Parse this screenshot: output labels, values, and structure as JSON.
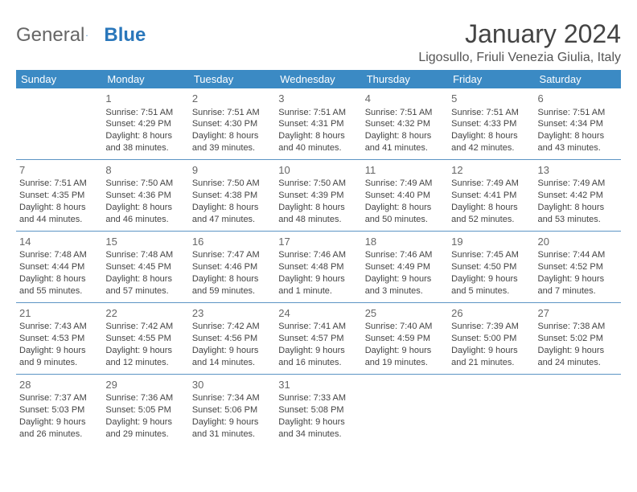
{
  "logo": {
    "part1": "General",
    "part2": "Blue"
  },
  "title": "January 2024",
  "location": "Ligosullo, Friuli Venezia Giulia, Italy",
  "colors": {
    "header_bg": "#3b8ac4",
    "header_text": "#ffffff",
    "cell_border": "#5c94c4",
    "body_text": "#444444",
    "daynum_text": "#666666",
    "logo_gray": "#666666",
    "logo_blue": "#2a77bb"
  },
  "weekdays": [
    "Sunday",
    "Monday",
    "Tuesday",
    "Wednesday",
    "Thursday",
    "Friday",
    "Saturday"
  ],
  "weeks": [
    [
      null,
      {
        "n": "1",
        "l1": "Sunrise: 7:51 AM",
        "l2": "Sunset: 4:29 PM",
        "l3": "Daylight: 8 hours",
        "l4": "and 38 minutes."
      },
      {
        "n": "2",
        "l1": "Sunrise: 7:51 AM",
        "l2": "Sunset: 4:30 PM",
        "l3": "Daylight: 8 hours",
        "l4": "and 39 minutes."
      },
      {
        "n": "3",
        "l1": "Sunrise: 7:51 AM",
        "l2": "Sunset: 4:31 PM",
        "l3": "Daylight: 8 hours",
        "l4": "and 40 minutes."
      },
      {
        "n": "4",
        "l1": "Sunrise: 7:51 AM",
        "l2": "Sunset: 4:32 PM",
        "l3": "Daylight: 8 hours",
        "l4": "and 41 minutes."
      },
      {
        "n": "5",
        "l1": "Sunrise: 7:51 AM",
        "l2": "Sunset: 4:33 PM",
        "l3": "Daylight: 8 hours",
        "l4": "and 42 minutes."
      },
      {
        "n": "6",
        "l1": "Sunrise: 7:51 AM",
        "l2": "Sunset: 4:34 PM",
        "l3": "Daylight: 8 hours",
        "l4": "and 43 minutes."
      }
    ],
    [
      {
        "n": "7",
        "l1": "Sunrise: 7:51 AM",
        "l2": "Sunset: 4:35 PM",
        "l3": "Daylight: 8 hours",
        "l4": "and 44 minutes."
      },
      {
        "n": "8",
        "l1": "Sunrise: 7:50 AM",
        "l2": "Sunset: 4:36 PM",
        "l3": "Daylight: 8 hours",
        "l4": "and 46 minutes."
      },
      {
        "n": "9",
        "l1": "Sunrise: 7:50 AM",
        "l2": "Sunset: 4:38 PM",
        "l3": "Daylight: 8 hours",
        "l4": "and 47 minutes."
      },
      {
        "n": "10",
        "l1": "Sunrise: 7:50 AM",
        "l2": "Sunset: 4:39 PM",
        "l3": "Daylight: 8 hours",
        "l4": "and 48 minutes."
      },
      {
        "n": "11",
        "l1": "Sunrise: 7:49 AM",
        "l2": "Sunset: 4:40 PM",
        "l3": "Daylight: 8 hours",
        "l4": "and 50 minutes."
      },
      {
        "n": "12",
        "l1": "Sunrise: 7:49 AM",
        "l2": "Sunset: 4:41 PM",
        "l3": "Daylight: 8 hours",
        "l4": "and 52 minutes."
      },
      {
        "n": "13",
        "l1": "Sunrise: 7:49 AM",
        "l2": "Sunset: 4:42 PM",
        "l3": "Daylight: 8 hours",
        "l4": "and 53 minutes."
      }
    ],
    [
      {
        "n": "14",
        "l1": "Sunrise: 7:48 AM",
        "l2": "Sunset: 4:44 PM",
        "l3": "Daylight: 8 hours",
        "l4": "and 55 minutes."
      },
      {
        "n": "15",
        "l1": "Sunrise: 7:48 AM",
        "l2": "Sunset: 4:45 PM",
        "l3": "Daylight: 8 hours",
        "l4": "and 57 minutes."
      },
      {
        "n": "16",
        "l1": "Sunrise: 7:47 AM",
        "l2": "Sunset: 4:46 PM",
        "l3": "Daylight: 8 hours",
        "l4": "and 59 minutes."
      },
      {
        "n": "17",
        "l1": "Sunrise: 7:46 AM",
        "l2": "Sunset: 4:48 PM",
        "l3": "Daylight: 9 hours",
        "l4": "and 1 minute."
      },
      {
        "n": "18",
        "l1": "Sunrise: 7:46 AM",
        "l2": "Sunset: 4:49 PM",
        "l3": "Daylight: 9 hours",
        "l4": "and 3 minutes."
      },
      {
        "n": "19",
        "l1": "Sunrise: 7:45 AM",
        "l2": "Sunset: 4:50 PM",
        "l3": "Daylight: 9 hours",
        "l4": "and 5 minutes."
      },
      {
        "n": "20",
        "l1": "Sunrise: 7:44 AM",
        "l2": "Sunset: 4:52 PM",
        "l3": "Daylight: 9 hours",
        "l4": "and 7 minutes."
      }
    ],
    [
      {
        "n": "21",
        "l1": "Sunrise: 7:43 AM",
        "l2": "Sunset: 4:53 PM",
        "l3": "Daylight: 9 hours",
        "l4": "and 9 minutes."
      },
      {
        "n": "22",
        "l1": "Sunrise: 7:42 AM",
        "l2": "Sunset: 4:55 PM",
        "l3": "Daylight: 9 hours",
        "l4": "and 12 minutes."
      },
      {
        "n": "23",
        "l1": "Sunrise: 7:42 AM",
        "l2": "Sunset: 4:56 PM",
        "l3": "Daylight: 9 hours",
        "l4": "and 14 minutes."
      },
      {
        "n": "24",
        "l1": "Sunrise: 7:41 AM",
        "l2": "Sunset: 4:57 PM",
        "l3": "Daylight: 9 hours",
        "l4": "and 16 minutes."
      },
      {
        "n": "25",
        "l1": "Sunrise: 7:40 AM",
        "l2": "Sunset: 4:59 PM",
        "l3": "Daylight: 9 hours",
        "l4": "and 19 minutes."
      },
      {
        "n": "26",
        "l1": "Sunrise: 7:39 AM",
        "l2": "Sunset: 5:00 PM",
        "l3": "Daylight: 9 hours",
        "l4": "and 21 minutes."
      },
      {
        "n": "27",
        "l1": "Sunrise: 7:38 AM",
        "l2": "Sunset: 5:02 PM",
        "l3": "Daylight: 9 hours",
        "l4": "and 24 minutes."
      }
    ],
    [
      {
        "n": "28",
        "l1": "Sunrise: 7:37 AM",
        "l2": "Sunset: 5:03 PM",
        "l3": "Daylight: 9 hours",
        "l4": "and 26 minutes."
      },
      {
        "n": "29",
        "l1": "Sunrise: 7:36 AM",
        "l2": "Sunset: 5:05 PM",
        "l3": "Daylight: 9 hours",
        "l4": "and 29 minutes."
      },
      {
        "n": "30",
        "l1": "Sunrise: 7:34 AM",
        "l2": "Sunset: 5:06 PM",
        "l3": "Daylight: 9 hours",
        "l4": "and 31 minutes."
      },
      {
        "n": "31",
        "l1": "Sunrise: 7:33 AM",
        "l2": "Sunset: 5:08 PM",
        "l3": "Daylight: 9 hours",
        "l4": "and 34 minutes."
      },
      null,
      null,
      null
    ]
  ]
}
